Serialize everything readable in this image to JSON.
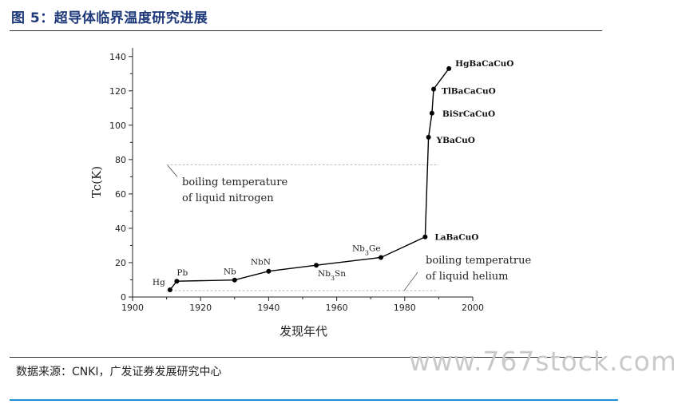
{
  "header": {
    "title": "图 5：超导体临界温度研究进展"
  },
  "footer": {
    "source": "数据来源：CNKI，广发证券发展研究中心"
  },
  "watermark": "www.767stock.com",
  "colors": {
    "title": "#1f3a7a",
    "rule_bottom": "#1f8fd6",
    "line": "#000000",
    "reference_line": "#bbbbbb"
  },
  "chart_data": {
    "type": "line",
    "title": "",
    "xlabel": "发现年代",
    "ylabel": "Tc(K)",
    "xlim": [
      1900,
      2000
    ],
    "ylim": [
      0,
      145
    ],
    "xticks": [
      1900,
      1920,
      1940,
      1960,
      1980,
      2000
    ],
    "yticks": [
      0,
      20,
      40,
      60,
      80,
      100,
      120,
      140
    ],
    "grid": false,
    "series": [
      {
        "points": [
          {
            "x": 1911,
            "y": 4.2,
            "label": "Hg"
          },
          {
            "x": 1913,
            "y": 9.2,
            "label": "Pb"
          },
          {
            "x": 1930,
            "y": 9.9,
            "label": "Nb"
          },
          {
            "x": 1940,
            "y": 15,
            "label": "NbN"
          },
          {
            "x": 1954,
            "y": 18.5,
            "label": "Nb3Sn"
          },
          {
            "x": 1973,
            "y": 23,
            "label": "Nb3Ge"
          },
          {
            "x": 1986,
            "y": 35,
            "label": "LaBaCuO"
          },
          {
            "x": 1987,
            "y": 93,
            "label": "YBaCuO"
          },
          {
            "x": 1988,
            "y": 107,
            "label": "BiSrCaCuO"
          },
          {
            "x": 1988.5,
            "y": 121,
            "label": "TlBaCaCuO"
          },
          {
            "x": 1993,
            "y": 133,
            "label": "HgBaCaCuO"
          }
        ]
      }
    ],
    "reference_lines": [
      {
        "y": 77,
        "label_line1": "boiling temperature",
        "label_line2": "of liquid nitrogen"
      },
      {
        "y": 4.2,
        "label_line1": "boiling temperatrue",
        "label_line2": "of liquid helium"
      }
    ]
  }
}
